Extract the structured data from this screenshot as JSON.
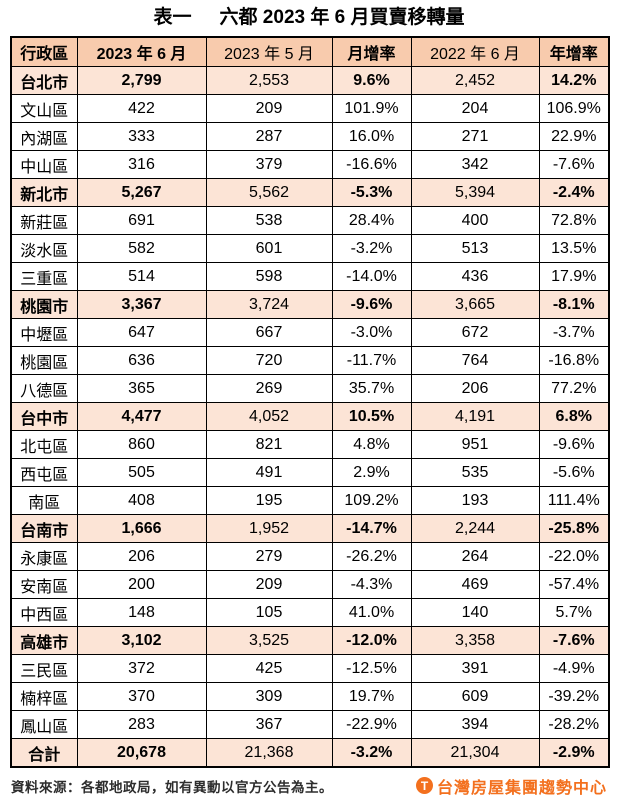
{
  "header": {
    "title_prefix": "表一",
    "title_main": "六都 2023 年 6 月買賣移轉量"
  },
  "chart_data": {
    "type": "table",
    "title": "表一 六都 2023 年 6 月買賣移轉量",
    "columns": [
      "行政區",
      "2023 年 6 月",
      "2023 年 5 月",
      "月增率",
      "2022 年 6 月",
      "年增率"
    ],
    "bold_columns": [
      0,
      1,
      3,
      5
    ],
    "highlighted_row_types": [
      "city",
      "total"
    ],
    "rows": [
      {
        "type": "city",
        "cells": [
          "台北市",
          "2,799",
          "2,553",
          "9.6%",
          "2,452",
          "14.2%"
        ]
      },
      {
        "type": "district",
        "cells": [
          "文山區",
          "422",
          "209",
          "101.9%",
          "204",
          "106.9%"
        ]
      },
      {
        "type": "district",
        "cells": [
          "內湖區",
          "333",
          "287",
          "16.0%",
          "271",
          "22.9%"
        ]
      },
      {
        "type": "district",
        "cells": [
          "中山區",
          "316",
          "379",
          "-16.6%",
          "342",
          "-7.6%"
        ]
      },
      {
        "type": "city",
        "cells": [
          "新北市",
          "5,267",
          "5,562",
          "-5.3%",
          "5,394",
          "-2.4%"
        ]
      },
      {
        "type": "district",
        "cells": [
          "新莊區",
          "691",
          "538",
          "28.4%",
          "400",
          "72.8%"
        ]
      },
      {
        "type": "district",
        "cells": [
          "淡水區",
          "582",
          "601",
          "-3.2%",
          "513",
          "13.5%"
        ]
      },
      {
        "type": "district",
        "cells": [
          "三重區",
          "514",
          "598",
          "-14.0%",
          "436",
          "17.9%"
        ]
      },
      {
        "type": "city",
        "cells": [
          "桃園市",
          "3,367",
          "3,724",
          "-9.6%",
          "3,665",
          "-8.1%"
        ]
      },
      {
        "type": "district",
        "cells": [
          "中壢區",
          "647",
          "667",
          "-3.0%",
          "672",
          "-3.7%"
        ]
      },
      {
        "type": "district",
        "cells": [
          "桃園區",
          "636",
          "720",
          "-11.7%",
          "764",
          "-16.8%"
        ]
      },
      {
        "type": "district",
        "cells": [
          "八德區",
          "365",
          "269",
          "35.7%",
          "206",
          "77.2%"
        ]
      },
      {
        "type": "city",
        "cells": [
          "台中市",
          "4,477",
          "4,052",
          "10.5%",
          "4,191",
          "6.8%"
        ]
      },
      {
        "type": "district",
        "cells": [
          "北屯區",
          "860",
          "821",
          "4.8%",
          "951",
          "-9.6%"
        ]
      },
      {
        "type": "district",
        "cells": [
          "西屯區",
          "505",
          "491",
          "2.9%",
          "535",
          "-5.6%"
        ]
      },
      {
        "type": "district",
        "cells": [
          "南區",
          "408",
          "195",
          "109.2%",
          "193",
          "111.4%"
        ]
      },
      {
        "type": "city",
        "cells": [
          "台南市",
          "1,666",
          "1,952",
          "-14.7%",
          "2,244",
          "-25.8%"
        ]
      },
      {
        "type": "district",
        "cells": [
          "永康區",
          "206",
          "279",
          "-26.2%",
          "264",
          "-22.0%"
        ]
      },
      {
        "type": "district",
        "cells": [
          "安南區",
          "200",
          "209",
          "-4.3%",
          "469",
          "-57.4%"
        ]
      },
      {
        "type": "district",
        "cells": [
          "中西區",
          "148",
          "105",
          "41.0%",
          "140",
          "5.7%"
        ]
      },
      {
        "type": "city",
        "cells": [
          "高雄市",
          "3,102",
          "3,525",
          "-12.0%",
          "3,358",
          "-7.6%"
        ]
      },
      {
        "type": "district",
        "cells": [
          "三民區",
          "372",
          "425",
          "-12.5%",
          "391",
          "-4.9%"
        ]
      },
      {
        "type": "district",
        "cells": [
          "楠梓區",
          "370",
          "309",
          "19.7%",
          "609",
          "-39.2%"
        ]
      },
      {
        "type": "district",
        "cells": [
          "鳳山區",
          "283",
          "367",
          "-22.9%",
          "394",
          "-28.2%"
        ]
      },
      {
        "type": "total",
        "cells": [
          "合計",
          "20,678",
          "21,368",
          "-3.2%",
          "21,304",
          "-2.9%"
        ]
      }
    ]
  },
  "footer": {
    "source": "資料來源：各都地政局，如有異動以官方公告為主。",
    "brand": "台灣房屋集團趨勢中心",
    "brand_icon": "T"
  },
  "colors": {
    "header_fill": "#F8CBAD",
    "highlight_fill": "#FCE4D6",
    "brand_orange": "#F3701E",
    "border": "#000000"
  }
}
